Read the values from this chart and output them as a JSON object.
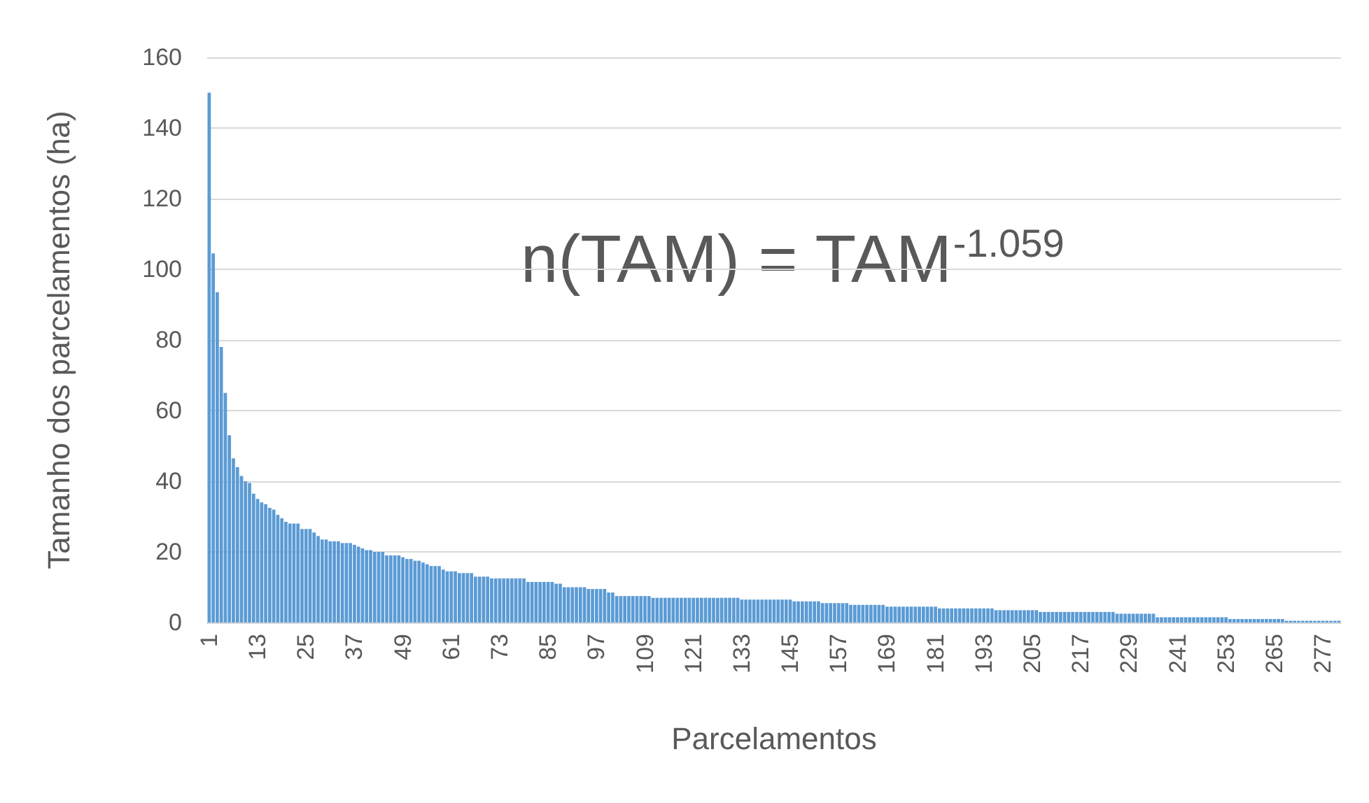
{
  "chart_data": {
    "type": "bar",
    "xlabel": "Parcelamentos",
    "ylabel": "Tamanho dos parcelamentos (ha)",
    "annotations": [
      "n(TAM) = TAM$^{-1.059}$"
    ],
    "categories": [
      "1",
      null,
      null,
      null,
      null,
      null,
      null,
      null,
      null,
      null,
      null,
      null,
      "13",
      null,
      null,
      null,
      null,
      null,
      null,
      null,
      null,
      null,
      null,
      null,
      "25",
      null,
      null,
      null,
      null,
      null,
      null,
      null,
      null,
      null,
      null,
      null,
      "37",
      null,
      null,
      null,
      null,
      null,
      null,
      null,
      null,
      null,
      null,
      null,
      "49",
      null,
      null,
      null,
      null,
      null,
      null,
      null,
      null,
      null,
      null,
      null,
      "61",
      null,
      null,
      null,
      null,
      null,
      null,
      null,
      null,
      null,
      null,
      null,
      "73",
      null,
      null,
      null,
      null,
      null,
      null,
      null,
      null,
      null,
      null,
      null,
      "85",
      null,
      null,
      null,
      null,
      null,
      null,
      null,
      null,
      null,
      null,
      null,
      "97",
      null,
      null,
      null,
      null,
      null,
      null,
      null,
      null,
      null,
      null,
      null,
      "109",
      null,
      null,
      null,
      null,
      null,
      null,
      null,
      null,
      null,
      null,
      null,
      "121",
      null,
      null,
      null,
      null,
      null,
      null,
      null,
      null,
      null,
      null,
      null,
      "133",
      null,
      null,
      null,
      null,
      null,
      null,
      null,
      null,
      null,
      null,
      null,
      "145",
      null,
      null,
      null,
      null,
      null,
      null,
      null,
      null,
      null,
      null,
      null,
      "157",
      null,
      null,
      null,
      null,
      null,
      null,
      null,
      null,
      null,
      null,
      null,
      "169",
      null,
      null,
      null,
      null,
      null,
      null,
      null,
      null,
      null,
      null,
      null,
      "181",
      null,
      null,
      null,
      null,
      null,
      null,
      null,
      null,
      null,
      null,
      null,
      "193",
      null,
      null,
      null,
      null,
      null,
      null,
      null,
      null,
      null,
      null,
      null,
      "205",
      null,
      null,
      null,
      null,
      null,
      null,
      null,
      null,
      null,
      null,
      null,
      "217",
      null,
      null,
      null,
      null,
      null,
      null,
      null,
      null,
      null,
      null,
      null,
      "229",
      null,
      null,
      null,
      null,
      null,
      null,
      null,
      null,
      null,
      null,
      null,
      "241",
      null,
      null,
      null,
      null,
      null,
      null,
      null,
      null,
      null,
      null,
      null,
      "253",
      null,
      null,
      null,
      null,
      null,
      null,
      null,
      null,
      null,
      null,
      null,
      "265",
      null,
      null,
      null,
      null,
      null,
      null,
      null,
      null,
      null,
      null,
      null,
      "277",
      null,
      null,
      null,
      null
    ],
    "values": [
      150,
      104.5,
      93.5,
      78,
      65,
      53,
      46.5,
      44,
      41.5,
      40,
      39.5,
      36.5,
      35,
      34,
      33.5,
      32.5,
      32,
      30.5,
      29.5,
      28.5,
      28,
      28,
      28,
      26.5,
      26.5,
      26.5,
      25.5,
      24.5,
      23.5,
      23.5,
      23,
      23,
      23,
      22.5,
      22.5,
      22.5,
      22,
      21.5,
      21,
      20.5,
      20.5,
      20,
      20,
      20,
      19,
      19,
      19,
      19,
      18.5,
      18,
      18,
      17.5,
      17.5,
      17,
      16.5,
      16,
      16,
      16,
      15,
      14.5,
      14.5,
      14.5,
      14,
      14,
      14,
      14,
      13,
      13,
      13,
      13,
      12.5,
      12.5,
      12.5,
      12.5,
      12.5,
      12.5,
      12.5,
      12.5,
      12.5,
      11.5,
      11.5,
      11.5,
      11.5,
      11.5,
      11.5,
      11.5,
      11,
      11,
      10,
      10,
      10,
      10,
      10,
      10,
      9.5,
      9.5,
      9.5,
      9.5,
      9.5,
      8.5,
      8.5,
      7.5,
      7.5,
      7.5,
      7.5,
      7.5,
      7.5,
      7.5,
      7.5,
      7.5,
      7,
      7,
      7,
      7,
      7,
      7,
      7,
      7,
      7,
      7,
      7,
      7,
      7,
      7,
      7,
      7,
      7,
      7,
      7,
      7,
      7,
      7,
      6.5,
      6.5,
      6.5,
      6.5,
      6.5,
      6.5,
      6.5,
      6.5,
      6.5,
      6.5,
      6.5,
      6.5,
      6.5,
      6,
      6,
      6,
      6,
      6,
      6,
      6,
      5.5,
      5.5,
      5.5,
      5.5,
      5.5,
      5.5,
      5.5,
      5,
      5,
      5,
      5,
      5,
      5,
      5,
      5,
      5,
      4.5,
      4.5,
      4.5,
      4.5,
      4.5,
      4.5,
      4.5,
      4.5,
      4.5,
      4.5,
      4.5,
      4.5,
      4.5,
      4,
      4,
      4,
      4,
      4,
      4,
      4,
      4,
      4,
      4,
      4,
      4,
      4,
      4,
      3.5,
      3.5,
      3.5,
      3.5,
      3.5,
      3.5,
      3.5,
      3.5,
      3.5,
      3.5,
      3.5,
      3,
      3,
      3,
      3,
      3,
      3,
      3,
      3,
      3,
      3,
      3,
      3,
      3,
      3,
      3,
      3,
      3,
      3,
      3,
      2.5,
      2.5,
      2.5,
      2.5,
      2.5,
      2.5,
      2.5,
      2.5,
      2.5,
      2.5,
      1.5,
      1.5,
      1.5,
      1.5,
      1.5,
      1.5,
      1.5,
      1.5,
      1.5,
      1.5,
      1.5,
      1.5,
      1.5,
      1.5,
      1.5,
      1.5,
      1.5,
      1.5,
      1,
      1,
      1,
      1,
      1,
      1,
      1,
      1,
      1,
      1,
      1,
      1,
      1,
      1,
      0.5,
      0.5,
      0.5,
      0.5,
      0.5,
      0.5,
      0.5,
      0.5,
      0.5,
      0.5,
      0.5,
      0.5,
      0.5,
      0.5
    ],
    "color": "#5b9bd5",
    "ylim": [
      0,
      160
    ],
    "yticks": [
      0,
      20,
      40,
      60,
      80,
      100,
      120,
      140,
      160
    ],
    "grid": "y"
  }
}
